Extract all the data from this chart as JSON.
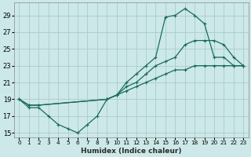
{
  "xlabel": "Humidex (Indice chaleur)",
  "bg_color": "#cce8e8",
  "grid_color": "#aacccc",
  "line_color": "#1a6b5a",
  "xlim": [
    -0.5,
    23.5
  ],
  "ylim": [
    14.5,
    30.5
  ],
  "yticks": [
    15,
    17,
    19,
    21,
    23,
    25,
    27,
    29
  ],
  "xticks": [
    0,
    1,
    2,
    3,
    4,
    5,
    6,
    7,
    8,
    9,
    10,
    11,
    12,
    13,
    14,
    15,
    16,
    17,
    18,
    19,
    20,
    21,
    22,
    23
  ],
  "line1_x": [
    0,
    1,
    2,
    3,
    4,
    5,
    6,
    7,
    8,
    9,
    10,
    11,
    12,
    13,
    14,
    15,
    16,
    17,
    18,
    19,
    20,
    21,
    22,
    23
  ],
  "line1_y": [
    19,
    18,
    18,
    17,
    16,
    15.5,
    15,
    16,
    17,
    19,
    19.5,
    21,
    22,
    23,
    24,
    28.8,
    29,
    29.8,
    29,
    28,
    24,
    24,
    23,
    23
  ],
  "line2_x": [
    0,
    1,
    2,
    9,
    10,
    11,
    12,
    13,
    14,
    15,
    16,
    17,
    18,
    19,
    20,
    21,
    22,
    23
  ],
  "line2_y": [
    19,
    18.3,
    18.3,
    19,
    19.5,
    20.5,
    21,
    22,
    23,
    23.5,
    24,
    25.5,
    26,
    26,
    26,
    25.5,
    24,
    23
  ],
  "line3_x": [
    0,
    1,
    2,
    9,
    10,
    11,
    12,
    13,
    14,
    15,
    16,
    17,
    18,
    19,
    20,
    21,
    22,
    23
  ],
  "line3_y": [
    19,
    18.3,
    18.3,
    19,
    19.5,
    20,
    20.5,
    21,
    21.5,
    22,
    22.5,
    22.5,
    23,
    23,
    23,
    23,
    23,
    23
  ]
}
